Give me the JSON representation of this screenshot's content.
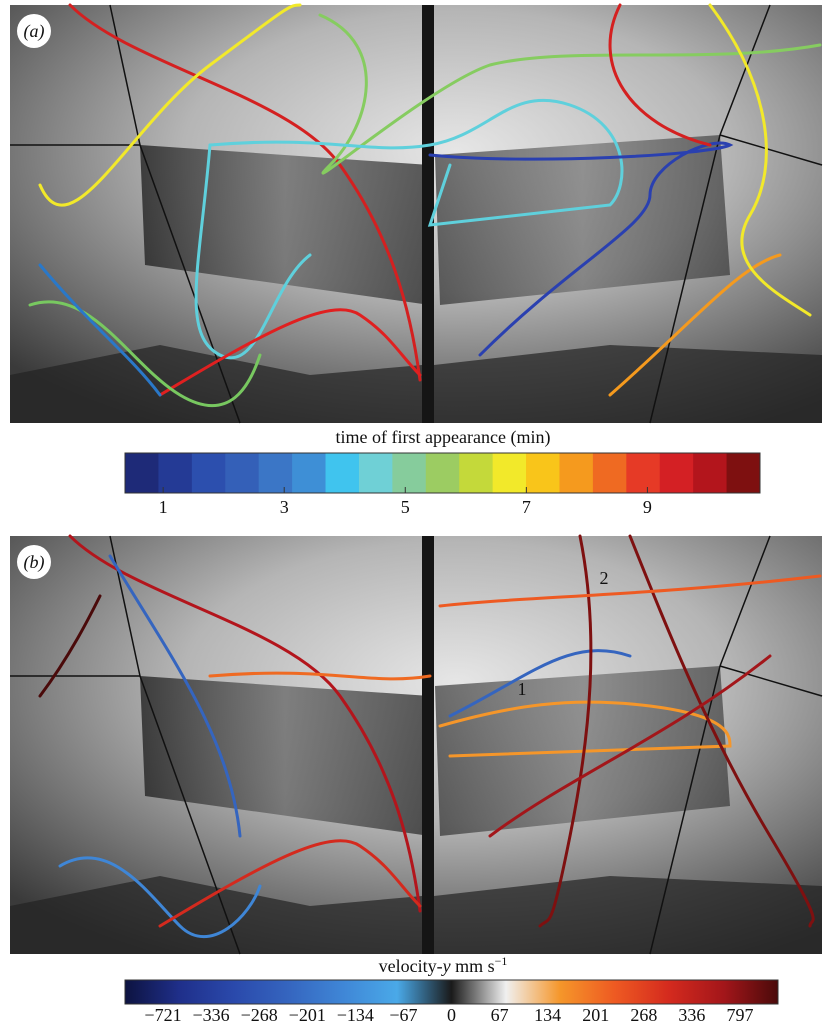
{
  "panels": [
    {
      "label": "(a)",
      "colorbar": {
        "title": "time of first appearance (min)",
        "lim": [
          0.37,
          10.86
        ],
        "ticks": [
          1,
          3,
          5,
          7,
          9
        ],
        "colors": [
          "#1e2a78",
          "#243a95",
          "#2c4fae",
          "#3460b8",
          "#3b76c6",
          "#3e8fd6",
          "#40c4ee",
          "#6fd0d6",
          "#86cc9c",
          "#9ccc62",
          "#c4d93a",
          "#f2e92a",
          "#f9c51a",
          "#f59a1e",
          "#ef6a22",
          "#e63a26",
          "#d42024",
          "#b3151c",
          "#7e1010"
        ]
      }
    },
    {
      "label": "(b)",
      "annotations": [
        "1",
        "2"
      ],
      "colorbar": {
        "title": {
          "prefix": "velocity-",
          "variable": "y",
          "unit": " mm s",
          "exponent": "−1"
        },
        "tick_labels": [
          "−721",
          "−336",
          "−268",
          "−201",
          "−134",
          "−67",
          "0",
          "67",
          "134",
          "201",
          "268",
          "336",
          "797"
        ],
        "colors": [
          "#0d1340",
          "#1f2f8a",
          "#2a49ab",
          "#3565bf",
          "#3f86d6",
          "#4aa9e8",
          "#1a1a1a",
          "#f0f0f0",
          "#f5962a",
          "#ee5a22",
          "#d42a1e",
          "#a3161a",
          "#4a0a0a"
        ]
      }
    }
  ]
}
